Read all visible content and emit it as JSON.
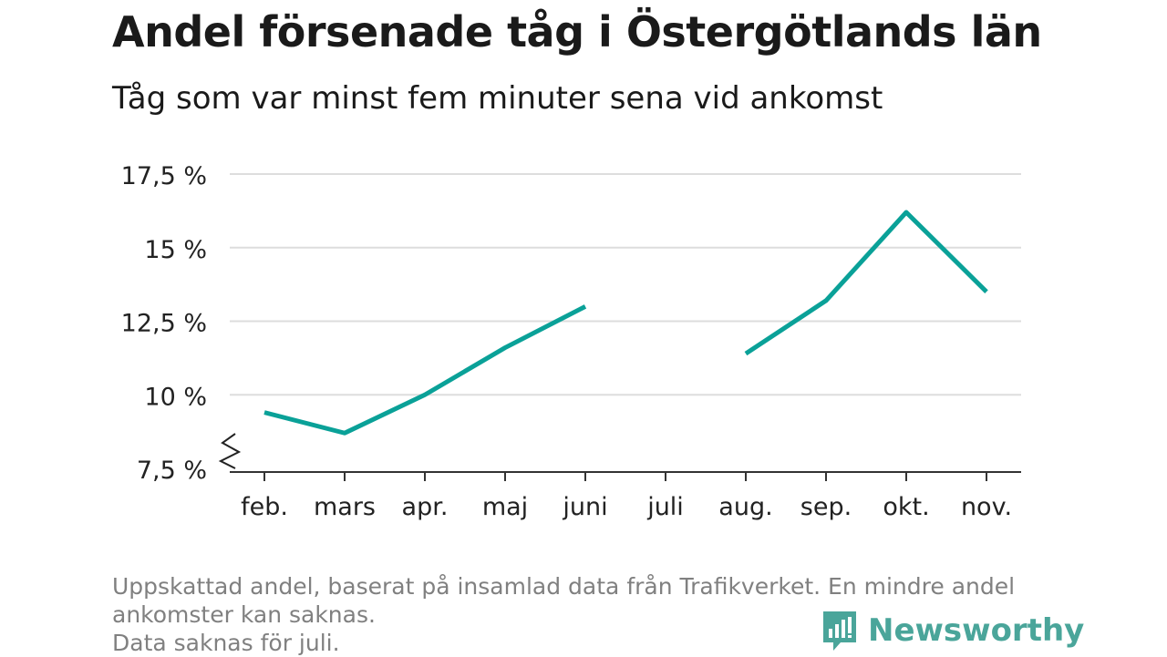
{
  "header": {
    "title": "Andel försenade tåg i Östergötlands län",
    "subtitle": "Tåg som var minst fem minuter sena vid ankomst"
  },
  "footer": {
    "note_line1": "Uppskattad andel, baserat på insamlad data från Trafikverket. En mindre andel",
    "note_line2": "ankomster kan saknas.",
    "note_line3": "Data saknas för juli.",
    "brand": "Newsworthy",
    "brand_icon": "bar-chart-speech-icon",
    "brand_color": "#4aa59a"
  },
  "chart_data": {
    "type": "line",
    "title": "Andel försenade tåg i Östergötlands län",
    "subtitle": "Tåg som var minst fem minuter sena vid ankomst",
    "categories": [
      "feb.",
      "mars",
      "apr.",
      "maj",
      "juni",
      "juli",
      "aug.",
      "sep.",
      "okt.",
      "nov."
    ],
    "series": [
      {
        "values": [
          9.4,
          8.7,
          10.0,
          11.6,
          13.0,
          null,
          11.4,
          13.2,
          16.2,
          13.5
        ],
        "color": "#0aa198"
      }
    ],
    "ylim": [
      7.5,
      17.5
    ],
    "yticks": [
      7.5,
      10,
      12.5,
      15,
      17.5
    ],
    "ytick_labels": [
      "7,5 %",
      "10 %",
      "12,5 %",
      "15 %",
      "17,5 %"
    ],
    "y_axis_break": true,
    "grid": true,
    "gridline_color": "#dddddd",
    "xlabel": "",
    "ylabel": ""
  }
}
